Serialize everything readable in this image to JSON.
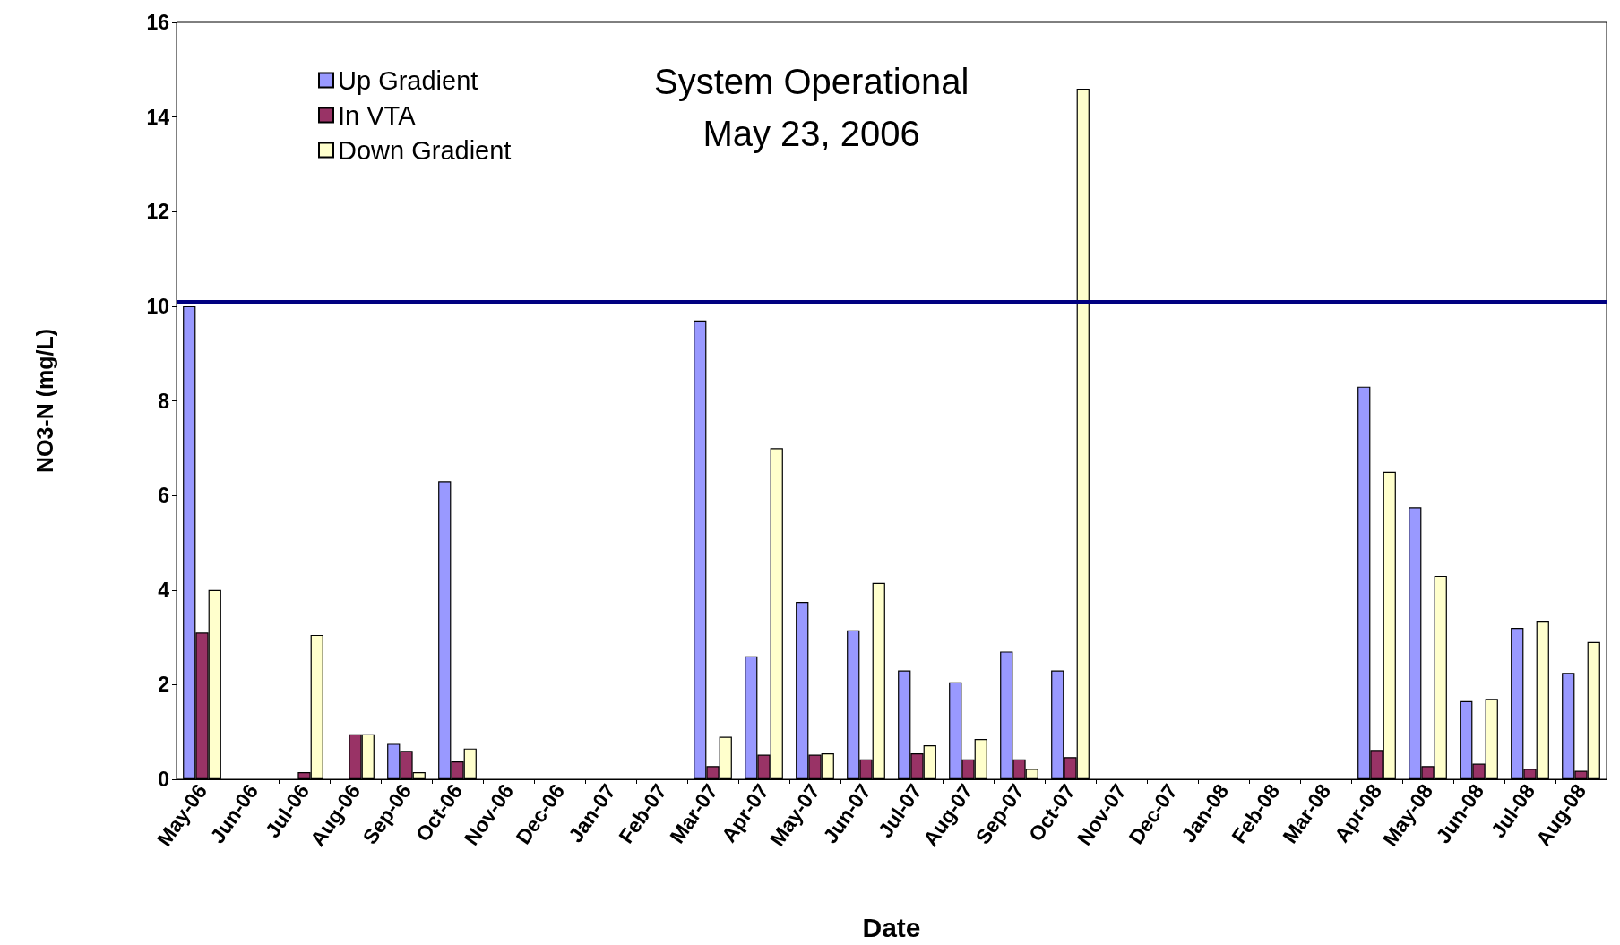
{
  "chart_data": {
    "type": "bar",
    "categories": [
      "May-06",
      "Jun-06",
      "Jul-06",
      "Aug-06",
      "Sep-06",
      "Oct-06",
      "Nov-06",
      "Dec-06",
      "Jan-07",
      "Feb-07",
      "Mar-07",
      "Apr-07",
      "May-07",
      "Jun-07",
      "Jul-07",
      "Aug-07",
      "Sep-07",
      "Oct-07",
      "Nov-07",
      "Dec-07",
      "Jan-08",
      "Feb-08",
      "Mar-08",
      "Apr-08",
      "May-08",
      "Jun-08",
      "Jul-08",
      "Aug-08"
    ],
    "series": [
      {
        "name": "Up Gradient",
        "color": "#9999ff",
        "values": [
          10.0,
          null,
          null,
          null,
          0.75,
          6.3,
          null,
          null,
          null,
          null,
          9.7,
          2.6,
          3.75,
          3.15,
          2.3,
          2.05,
          2.7,
          2.3,
          null,
          null,
          null,
          null,
          null,
          8.3,
          5.75,
          1.65,
          3.2,
          2.25
        ]
      },
      {
        "name": "In VTA",
        "color": "#993366",
        "values": [
          3.1,
          null,
          0.15,
          0.95,
          0.6,
          0.38,
          null,
          null,
          null,
          null,
          0.28,
          0.52,
          0.52,
          0.42,
          0.55,
          0.42,
          0.42,
          0.47,
          null,
          null,
          null,
          null,
          null,
          0.62,
          0.28,
          0.33,
          0.22,
          0.18
        ]
      },
      {
        "name": "Down Gradient",
        "color": "#ffffcc",
        "values": [
          4.0,
          null,
          3.05,
          0.95,
          0.15,
          0.65,
          null,
          null,
          null,
          null,
          0.9,
          7.0,
          0.55,
          4.15,
          0.72,
          0.85,
          0.22,
          14.6,
          null,
          null,
          null,
          null,
          null,
          6.5,
          4.3,
          1.7,
          3.35,
          2.9
        ]
      }
    ],
    "xlabel": "Date",
    "ylabel": "NO3-N (mg/L)",
    "ylim": [
      0,
      16
    ],
    "yticks": [
      0,
      2,
      4,
      6,
      8,
      10,
      12,
      14,
      16
    ],
    "ref_lines": [
      {
        "axis": "y",
        "value": 10.1,
        "color": "#000080"
      }
    ],
    "annotations": [
      "System Operational\nMay 23, 2006"
    ],
    "legend": "top left",
    "grid": false
  }
}
